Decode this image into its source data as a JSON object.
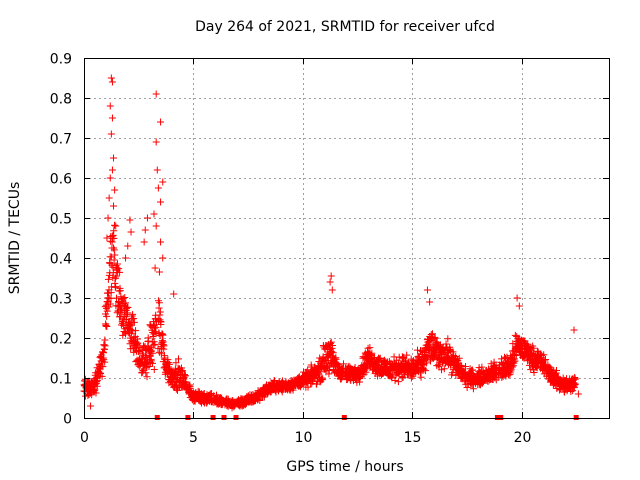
{
  "chart_data": {
    "type": "scatter",
    "title": "Day 264 of 2021, SRMTID for receiver ufcd",
    "xlabel": "GPS time / hours",
    "ylabel": "SRMTID / TECUs",
    "xlim": [
      0,
      24
    ],
    "ylim": [
      0,
      0.9
    ],
    "xticks": [
      0,
      5,
      10,
      15,
      20
    ],
    "yticks": [
      0,
      0.1,
      0.2,
      0.3,
      0.4,
      0.5,
      0.6,
      0.7,
      0.8,
      0.9
    ],
    "xtick_labels": [
      "0",
      "5",
      "10",
      "15",
      "20"
    ],
    "ytick_labels": [
      "0",
      "0.1",
      "0.2",
      "0.3",
      "0.4",
      "0.5",
      "0.6",
      "0.7",
      "0.8",
      "0.9"
    ],
    "grid": true,
    "marker": "+",
    "color": "#ff0000",
    "data_gaps_at_zero_hours": [
      3.35,
      4.75,
      5.9,
      6.4,
      6.95,
      11.9,
      18.9,
      19.05,
      22.5
    ],
    "trend": {
      "x": [
        0.0,
        0.3,
        0.6,
        0.9,
        1.1,
        1.3,
        1.6,
        1.9,
        2.2,
        2.5,
        2.8,
        3.1,
        3.4,
        3.7,
        4.0,
        4.3,
        4.6,
        4.9,
        5.3,
        5.8,
        6.3,
        6.8,
        7.3,
        7.8,
        8.3,
        8.8,
        9.3,
        9.8,
        10.3,
        10.8,
        11.1,
        11.3,
        11.6,
        12.0,
        12.5,
        13.0,
        13.5,
        14.0,
        14.5,
        15.0,
        15.5,
        15.8,
        16.2,
        16.6,
        17.0,
        17.5,
        18.0,
        18.5,
        19.0,
        19.5,
        19.8,
        20.2,
        20.5,
        20.9,
        21.3,
        21.7,
        22.1,
        22.5
      ],
      "center": [
        0.08,
        0.07,
        0.1,
        0.16,
        0.3,
        0.42,
        0.3,
        0.25,
        0.22,
        0.15,
        0.14,
        0.18,
        0.25,
        0.14,
        0.1,
        0.11,
        0.09,
        0.06,
        0.05,
        0.05,
        0.04,
        0.035,
        0.04,
        0.05,
        0.07,
        0.08,
        0.08,
        0.09,
        0.1,
        0.12,
        0.16,
        0.15,
        0.12,
        0.11,
        0.11,
        0.15,
        0.13,
        0.12,
        0.13,
        0.12,
        0.14,
        0.18,
        0.16,
        0.16,
        0.13,
        0.1,
        0.1,
        0.11,
        0.12,
        0.13,
        0.18,
        0.17,
        0.15,
        0.14,
        0.11,
        0.09,
        0.08,
        0.09
      ],
      "spread": [
        0.03,
        0.03,
        0.04,
        0.06,
        0.15,
        0.18,
        0.1,
        0.08,
        0.07,
        0.05,
        0.06,
        0.08,
        0.12,
        0.06,
        0.04,
        0.05,
        0.03,
        0.02,
        0.02,
        0.02,
        0.015,
        0.015,
        0.015,
        0.02,
        0.02,
        0.02,
        0.02,
        0.02,
        0.03,
        0.04,
        0.07,
        0.06,
        0.03,
        0.03,
        0.03,
        0.04,
        0.04,
        0.04,
        0.04,
        0.04,
        0.05,
        0.06,
        0.05,
        0.05,
        0.04,
        0.03,
        0.03,
        0.03,
        0.04,
        0.05,
        0.05,
        0.04,
        0.04,
        0.04,
        0.03,
        0.03,
        0.03,
        0.03
      ]
    },
    "peaks": [
      {
        "x": 1.25,
        "y": 0.85
      },
      {
        "x": 1.3,
        "y": 0.84
      },
      {
        "x": 1.2,
        "y": 0.78
      },
      {
        "x": 1.3,
        "y": 0.75
      },
      {
        "x": 1.25,
        "y": 0.71
      },
      {
        "x": 1.35,
        "y": 0.65
      },
      {
        "x": 1.3,
        "y": 0.62
      },
      {
        "x": 1.2,
        "y": 0.6
      },
      {
        "x": 1.4,
        "y": 0.57
      },
      {
        "x": 1.15,
        "y": 0.55
      },
      {
        "x": 1.35,
        "y": 0.53
      },
      {
        "x": 1.1,
        "y": 0.5
      },
      {
        "x": 1.45,
        "y": 0.48
      },
      {
        "x": 1.05,
        "y": 0.45
      },
      {
        "x": 2.1,
        "y": 0.495
      },
      {
        "x": 2.15,
        "y": 0.465
      },
      {
        "x": 2.0,
        "y": 0.43
      },
      {
        "x": 1.9,
        "y": 0.4
      },
      {
        "x": 2.8,
        "y": 0.47
      },
      {
        "x": 2.9,
        "y": 0.5
      },
      {
        "x": 2.75,
        "y": 0.44
      },
      {
        "x": 3.3,
        "y": 0.81
      },
      {
        "x": 3.5,
        "y": 0.74
      },
      {
        "x": 3.3,
        "y": 0.69
      },
      {
        "x": 3.35,
        "y": 0.62
      },
      {
        "x": 3.6,
        "y": 0.59
      },
      {
        "x": 3.4,
        "y": 0.575
      },
      {
        "x": 3.5,
        "y": 0.54
      },
      {
        "x": 3.2,
        "y": 0.51
      },
      {
        "x": 3.3,
        "y": 0.48
      },
      {
        "x": 3.5,
        "y": 0.44
      },
      {
        "x": 3.6,
        "y": 0.4
      },
      {
        "x": 3.25,
        "y": 0.375
      },
      {
        "x": 3.45,
        "y": 0.365
      },
      {
        "x": 4.1,
        "y": 0.31
      },
      {
        "x": 11.3,
        "y": 0.355
      },
      {
        "x": 11.25,
        "y": 0.34
      },
      {
        "x": 11.35,
        "y": 0.32
      },
      {
        "x": 15.7,
        "y": 0.32
      },
      {
        "x": 15.8,
        "y": 0.29
      },
      {
        "x": 19.8,
        "y": 0.3
      },
      {
        "x": 19.9,
        "y": 0.28
      },
      {
        "x": 22.4,
        "y": 0.22
      },
      {
        "x": 0.3,
        "y": 0.03
      },
      {
        "x": 22.6,
        "y": 0.06
      }
    ]
  }
}
